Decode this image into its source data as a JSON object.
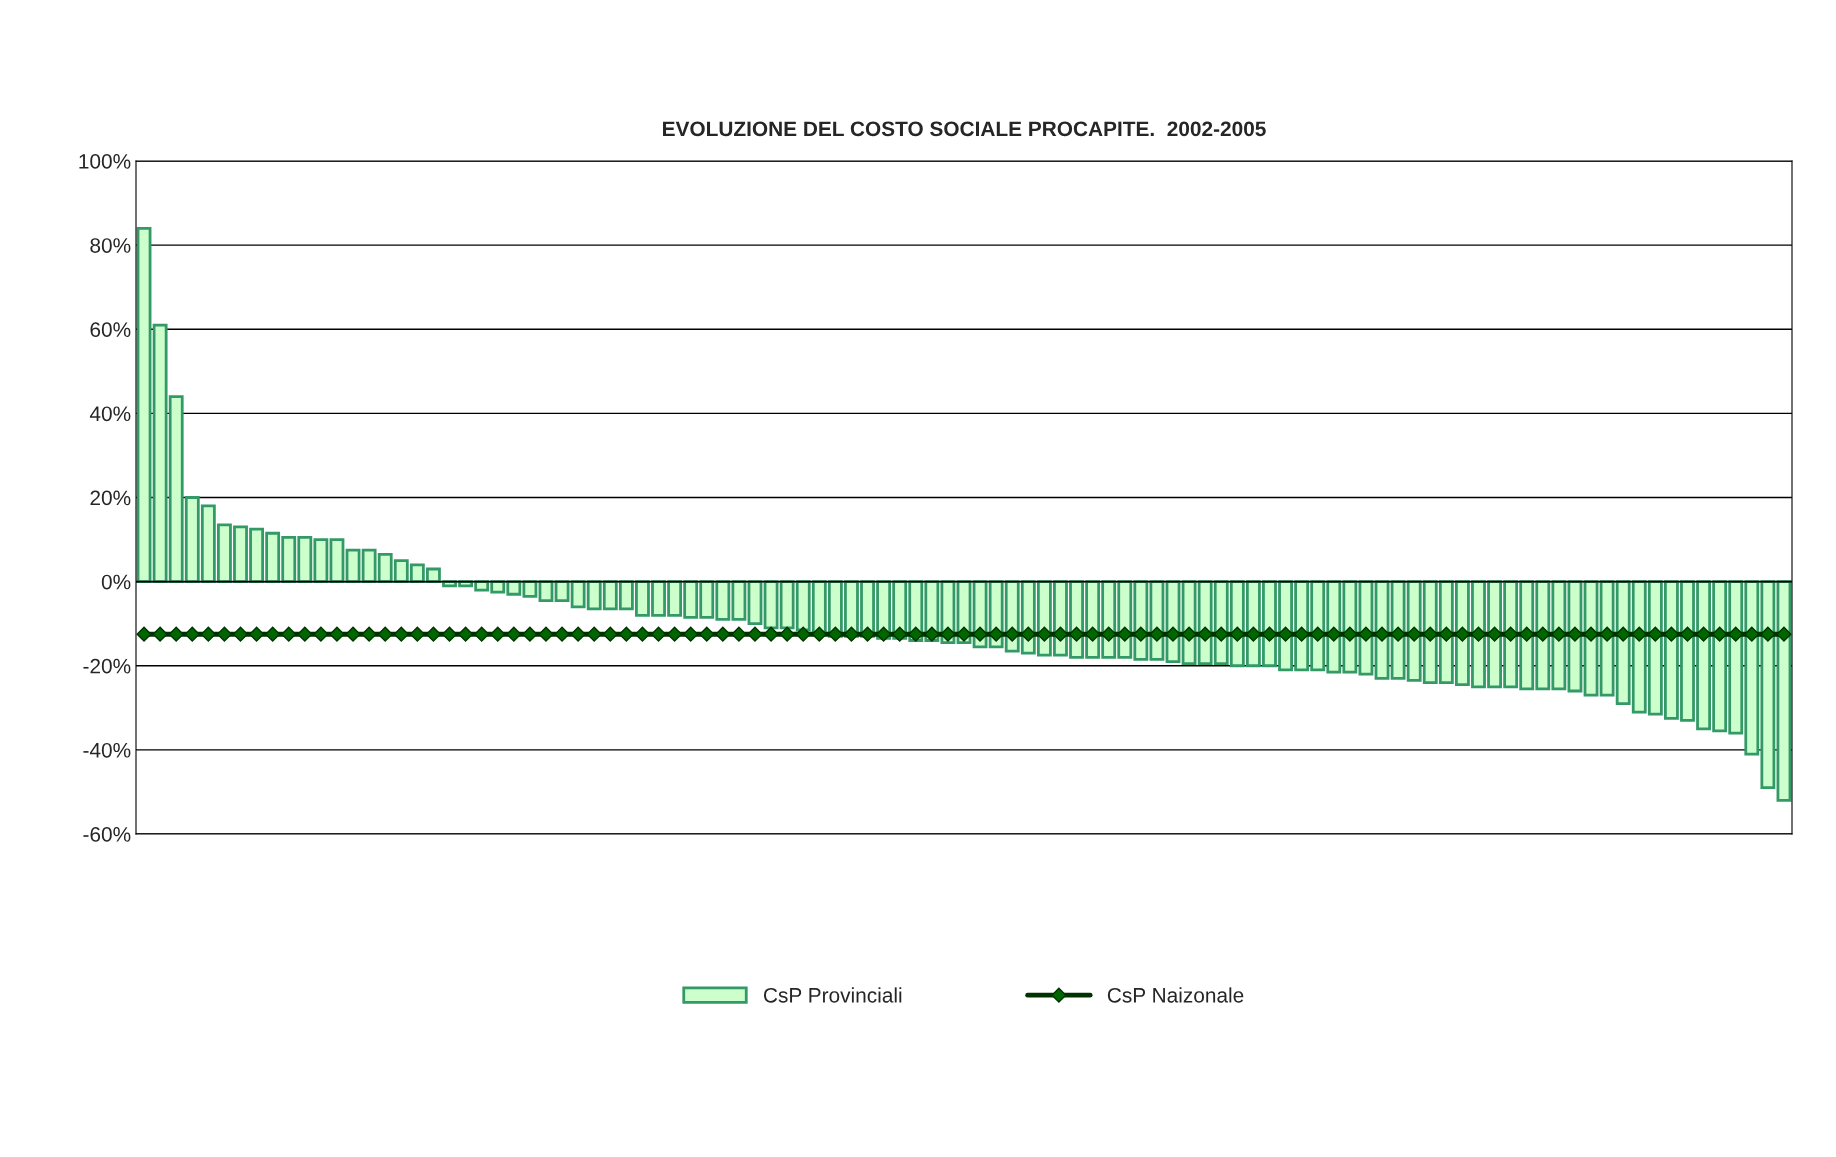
{
  "chart_data": {
    "type": "bar",
    "title": "EVOLUZIONE DEL COSTO SOCIALE PROCAPITE.  2002-2005",
    "categories": [
      null,
      null,
      null,
      null,
      null,
      null,
      null,
      null,
      null,
      null,
      null,
      null,
      null,
      null,
      null,
      null,
      null,
      null,
      null,
      null,
      null,
      null,
      null,
      null,
      null,
      null,
      null,
      null,
      null,
      null,
      null,
      null,
      null,
      null,
      null,
      null,
      null,
      null,
      null,
      null,
      null,
      null,
      null,
      null,
      null,
      null,
      null,
      null,
      null,
      null,
      null,
      null,
      null,
      null,
      null,
      null,
      null,
      null,
      null,
      null,
      null,
      null,
      null,
      null,
      null,
      null,
      null,
      null,
      null,
      null,
      null,
      null,
      null,
      null,
      null,
      null,
      null,
      null,
      null,
      null,
      null,
      null,
      null,
      null,
      null,
      null,
      null,
      null,
      null,
      null,
      null,
      null,
      null,
      null,
      null,
      null,
      null,
      null,
      null,
      null,
      null,
      null,
      null
    ],
    "series": [
      {
        "name": "CsP Provinciali",
        "color": "#ccffcc",
        "values": [
          84,
          61,
          44,
          20,
          18,
          13.5,
          13,
          12.5,
          11.5,
          10.5,
          10.5,
          10,
          10,
          7.5,
          7.5,
          6.5,
          5,
          4,
          3,
          -1,
          -1,
          -2,
          -2.5,
          -3,
          -3.5,
          -4.5,
          -4.5,
          -6,
          -6.5,
          -6.5,
          -6.5,
          -8,
          -8,
          -8,
          -8.5,
          -8.5,
          -9,
          -9,
          -10,
          -11,
          -11,
          -11.5,
          -12,
          -13,
          -13,
          -13,
          -13.5,
          -13.5,
          -14,
          -14,
          -14.5,
          -14.5,
          -15.5,
          -15.5,
          -16.5,
          -17,
          -17.5,
          -17.5,
          -18,
          -18,
          -18,
          -18,
          -18.5,
          -18.5,
          -19,
          -19.5,
          -19.5,
          -19.5,
          -20,
          -20,
          -20,
          -21,
          -21,
          -21,
          -21.5,
          -21.5,
          -22,
          -23,
          -23,
          -23.5,
          -24,
          -24,
          -24.5,
          -25,
          -25,
          -25,
          -25.5,
          -25.5,
          -25.5,
          -26,
          -27,
          -27,
          -29,
          -31,
          -31.5,
          -32.5,
          -33,
          -35,
          -35.5,
          -36,
          -41,
          -49,
          -52
        ]
      },
      {
        "name": "CsP Naizonale",
        "type": "line",
        "color": "#006600",
        "marker": "diamond",
        "values": [
          -12.5,
          -12.5,
          -12.5,
          -12.5,
          -12.5,
          -12.5,
          -12.5,
          -12.5,
          -12.5,
          -12.5,
          -12.5,
          -12.5,
          -12.5,
          -12.5,
          -12.5,
          -12.5,
          -12.5,
          -12.5,
          -12.5,
          -12.5,
          -12.5,
          -12.5,
          -12.5,
          -12.5,
          -12.5,
          -12.5,
          -12.5,
          -12.5,
          -12.5,
          -12.5,
          -12.5,
          -12.5,
          -12.5,
          -12.5,
          -12.5,
          -12.5,
          -12.5,
          -12.5,
          -12.5,
          -12.5,
          -12.5,
          -12.5,
          -12.5,
          -12.5,
          -12.5,
          -12.5,
          -12.5,
          -12.5,
          -12.5,
          -12.5,
          -12.5,
          -12.5,
          -12.5,
          -12.5,
          -12.5,
          -12.5,
          -12.5,
          -12.5,
          -12.5,
          -12.5,
          -12.5,
          -12.5,
          -12.5,
          -12.5,
          -12.5,
          -12.5,
          -12.5,
          -12.5,
          -12.5,
          -12.5,
          -12.5,
          -12.5,
          -12.5,
          -12.5,
          -12.5,
          -12.5,
          -12.5,
          -12.5,
          -12.5,
          -12.5,
          -12.5,
          -12.5,
          -12.5,
          -12.5,
          -12.5,
          -12.5,
          -12.5,
          -12.5,
          -12.5,
          -12.5,
          -12.5,
          -12.5,
          -12.5,
          -12.5,
          -12.5,
          -12.5,
          -12.5,
          -12.5,
          -12.5,
          -12.5,
          -12.5,
          -12.5,
          -12.5
        ]
      }
    ],
    "ylim": [
      -60,
      100
    ],
    "yticks": [
      {
        "value": -60,
        "label": "-60%"
      },
      {
        "value": -40,
        "label": "-40%"
      },
      {
        "value": -20,
        "label": "-20%"
      },
      {
        "value": 0,
        "label": "0%"
      },
      {
        "value": 20,
        "label": "20%"
      },
      {
        "value": 40,
        "label": "40%"
      },
      {
        "value": 60,
        "label": "60%"
      },
      {
        "value": 80,
        "label": "80%"
      },
      {
        "value": 100,
        "label": "100%"
      }
    ],
    "grid": "y",
    "legend": "bottom",
    "tick_labels": "y"
  }
}
